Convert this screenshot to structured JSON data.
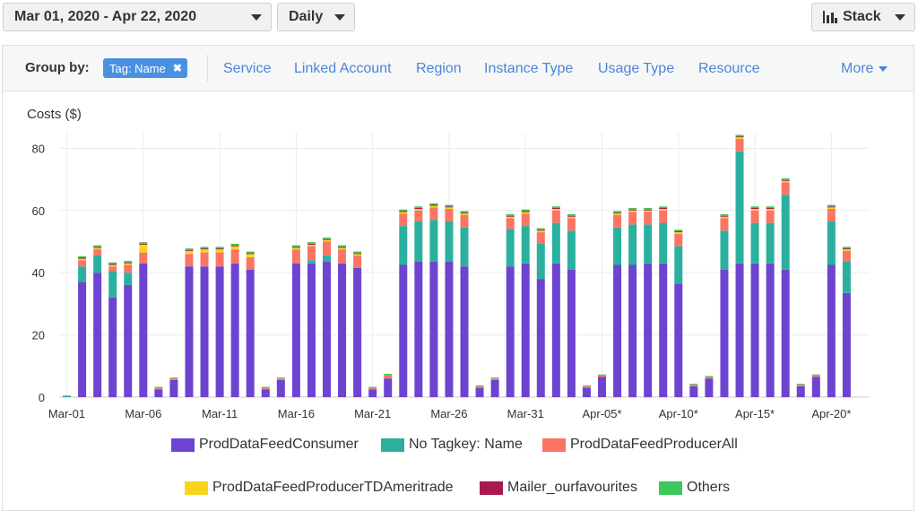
{
  "toolbar": {
    "date_range": "Mar 01, 2020 - Apr 22, 2020",
    "granularity": "Daily",
    "chart_style": "Stack"
  },
  "group_by": {
    "label": "Group by:",
    "active_tag": "Tag: Name",
    "options": [
      "Service",
      "Linked Account",
      "Region",
      "Instance Type",
      "Usage Type",
      "Resource"
    ],
    "more": "More"
  },
  "colors": {
    "consumer": "#6c44d0",
    "no_tagkey": "#2bb0a0",
    "producer_all": "#fa7564",
    "producer_td": "#f7d51c",
    "mailer": "#a8194f",
    "others": "#3dc85c"
  },
  "chart_data": {
    "type": "bar",
    "stacked": true,
    "ylabel": "Costs ($)",
    "ylim": [
      0,
      85
    ],
    "yticks": [
      0,
      20,
      40,
      60,
      80
    ],
    "grid": true,
    "legend_position": "bottom",
    "x_tick_labels": [
      "Mar-01",
      "Mar-06",
      "Mar-11",
      "Mar-16",
      "Mar-21",
      "Mar-26",
      "Mar-31",
      "Apr-05*",
      "Apr-10*",
      "Apr-15*",
      "Apr-20*"
    ],
    "categories": [
      "Mar-01",
      "Mar-02",
      "Mar-03",
      "Mar-04",
      "Mar-05",
      "Mar-06",
      "Mar-07",
      "Mar-08",
      "Mar-09",
      "Mar-10",
      "Mar-11",
      "Mar-12",
      "Mar-13",
      "Mar-14",
      "Mar-15",
      "Mar-16",
      "Mar-17",
      "Mar-18",
      "Mar-19",
      "Mar-20",
      "Mar-21",
      "Mar-22",
      "Mar-23",
      "Mar-24",
      "Mar-25",
      "Mar-26",
      "Mar-27",
      "Mar-28",
      "Mar-29",
      "Mar-30",
      "Mar-31",
      "Apr-01",
      "Apr-02",
      "Apr-03",
      "Apr-04",
      "Apr-05*",
      "Apr-06*",
      "Apr-07*",
      "Apr-08*",
      "Apr-09*",
      "Apr-10*",
      "Apr-11*",
      "Apr-12*",
      "Apr-13*",
      "Apr-14*",
      "Apr-15*",
      "Apr-16*",
      "Apr-17*",
      "Apr-18*",
      "Apr-19*",
      "Apr-20*",
      "Apr-21*",
      "Apr-22*"
    ],
    "series": [
      {
        "name": "ProdDataFeedConsumer",
        "color_key": "consumer",
        "values": [
          0,
          37,
          40,
          32,
          36,
          43,
          2.5,
          5.5,
          42,
          42,
          42,
          43,
          41,
          2.5,
          5.5,
          43,
          43,
          43.5,
          43,
          41.5,
          2.5,
          6,
          42.5,
          43.5,
          43.5,
          43.5,
          42,
          3,
          5.5,
          42,
          43,
          38,
          43,
          41,
          3,
          6.5,
          42.5,
          42.5,
          43,
          43,
          36.5,
          3.5,
          6,
          41,
          43,
          43,
          43,
          41,
          3.5,
          6.5,
          42.5,
          33.5,
          0
        ]
      },
      {
        "name": "No Tagkey: Name",
        "color_key": "no_tagkey",
        "values": [
          0.5,
          5,
          5.5,
          8.5,
          4,
          0,
          0,
          0,
          0,
          0,
          0,
          0,
          0,
          0,
          0,
          0,
          1,
          2,
          0,
          0,
          0,
          0,
          12.5,
          13,
          13.5,
          13,
          12.5,
          0,
          0,
          12,
          12,
          11.5,
          13,
          12.5,
          0,
          0,
          12,
          13,
          12.5,
          13,
          12,
          0,
          0,
          12.5,
          36,
          13,
          13,
          24,
          0,
          0,
          14,
          10,
          0
        ]
      },
      {
        "name": "ProdDataFeedProducerAll",
        "color_key": "producer_all",
        "values": [
          0,
          2,
          2,
          1.5,
          2.5,
          3.5,
          0.5,
          0.5,
          4,
          4.5,
          4.5,
          4.5,
          4,
          0.5,
          0.5,
          4.5,
          4.5,
          4.5,
          4.5,
          4,
          0.5,
          1,
          4,
          3.5,
          4,
          4,
          4,
          0.5,
          0.5,
          3.5,
          4,
          3.5,
          4,
          4,
          0.5,
          0.5,
          4,
          4,
          4,
          4,
          4,
          0.5,
          0.5,
          4,
          4,
          4,
          4,
          4,
          0.5,
          0.5,
          4,
          3.5,
          0
        ]
      },
      {
        "name": "ProdDataFeedProducerTDAmeritrade",
        "color_key": "producer_td",
        "values": [
          0,
          0.5,
          0.5,
          0.5,
          0.5,
          2.5,
          0,
          0,
          1,
          1,
          1,
          1,
          1,
          0,
          0,
          0.5,
          0.5,
          0.5,
          0.5,
          0.5,
          0,
          0,
          0.5,
          0.5,
          0.5,
          0.5,
          0.5,
          0,
          0,
          0.5,
          0.5,
          0.5,
          0.5,
          0.5,
          0,
          0,
          0.5,
          0.5,
          0.5,
          0.5,
          0.5,
          0,
          0,
          0.5,
          0.5,
          0.5,
          0.5,
          0.5,
          0,
          0,
          0.5,
          0.5,
          0
        ]
      },
      {
        "name": "Mailer_ourfavourites",
        "color_key": "mailer",
        "values": [
          0,
          0.3,
          0.3,
          0.3,
          0.3,
          0.3,
          0,
          0,
          0.3,
          0.3,
          0.3,
          0.3,
          0.3,
          0,
          0,
          0.3,
          0.3,
          0.3,
          0.3,
          0.3,
          0,
          0,
          0.3,
          0.3,
          0.3,
          0.3,
          0.3,
          0,
          0,
          0.3,
          0.3,
          0.3,
          0.3,
          0.3,
          0,
          0,
          0.3,
          0.3,
          0.3,
          0.3,
          0.3,
          0,
          0,
          0.3,
          0.3,
          0.3,
          0.3,
          0.3,
          0,
          0,
          0.3,
          0.3,
          0
        ]
      },
      {
        "name": "Others",
        "color_key": "others",
        "values": [
          0,
          0.5,
          0.5,
          0.5,
          0.5,
          0.5,
          0.3,
          0.3,
          0.5,
          0.5,
          0.5,
          0.5,
          0.5,
          0.3,
          0.3,
          0.5,
          0.5,
          0.5,
          0.5,
          0.5,
          0.3,
          0.5,
          0.5,
          0.5,
          0.5,
          0.5,
          0.5,
          0.3,
          0.3,
          0.5,
          0.5,
          0.5,
          0.5,
          0.5,
          0.3,
          0.3,
          0.5,
          0.5,
          0.5,
          0.5,
          0.5,
          0.3,
          0.3,
          0.5,
          0.5,
          0.5,
          0.5,
          0.5,
          0.3,
          0.3,
          0.5,
          0.5,
          0
        ]
      }
    ]
  }
}
